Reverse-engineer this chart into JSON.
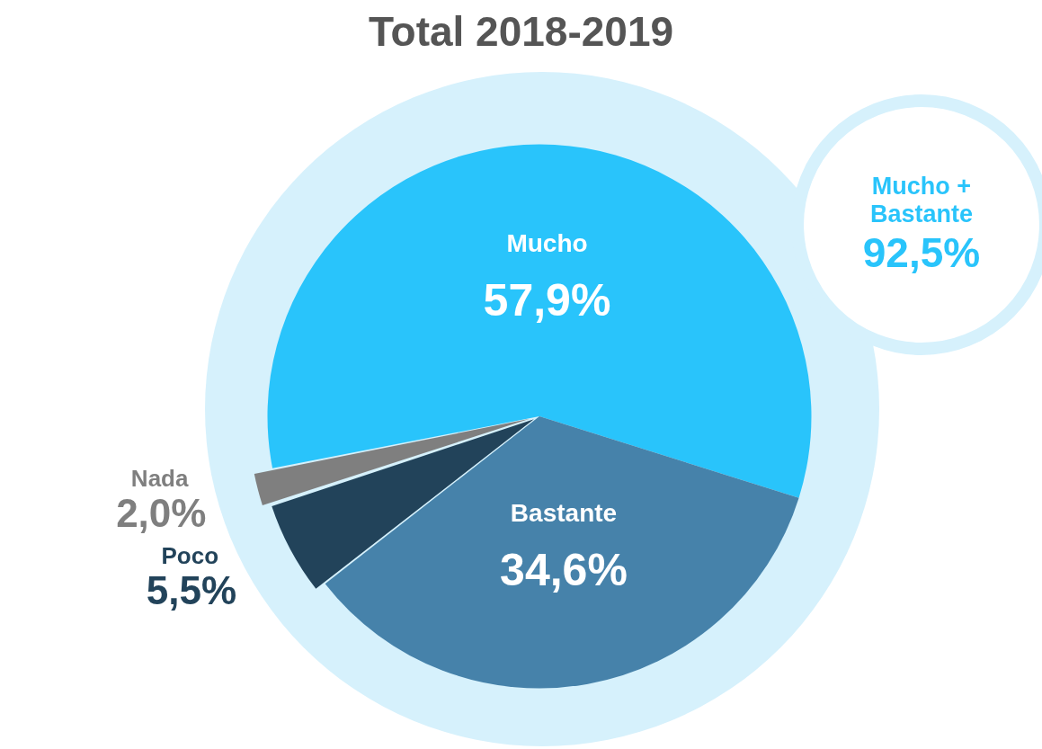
{
  "chart_data": {
    "type": "pie",
    "title": "Total 2018-2019",
    "categories": [
      "Mucho",
      "Bastante",
      "Poco",
      "Nada"
    ],
    "values": [
      57.9,
      34.6,
      5.5,
      2.0
    ],
    "colors": [
      "#29c4fb",
      "#4682aa",
      "#22435a",
      "#7f7f7f"
    ],
    "value_labels": [
      "57,9%",
      "34,6%",
      "5,5%",
      "2,0%"
    ],
    "annotations": [
      "Mucho + Bastante",
      "92,5%"
    ],
    "legend": false
  }
}
